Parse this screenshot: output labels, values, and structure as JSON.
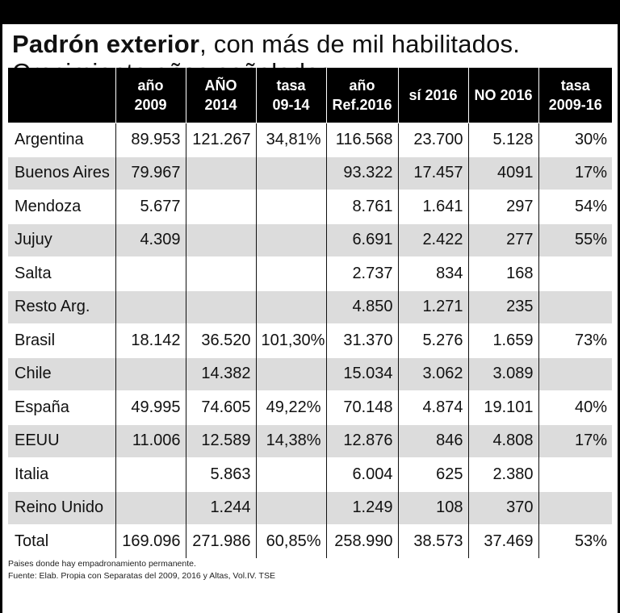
{
  "title": {
    "bold": "Padrón exterior",
    "rest": ", con más de mil habilitados. Crecimiento años señalados"
  },
  "headers": [
    [
      "",
      ""
    ],
    [
      "año",
      "2009"
    ],
    [
      "AÑO",
      "2014"
    ],
    [
      "tasa",
      "09-14"
    ],
    [
      "año",
      "Ref.2016"
    ],
    [
      "sí 2016",
      ""
    ],
    [
      "NO 2016",
      ""
    ],
    [
      "tasa",
      "2009-16"
    ]
  ],
  "rows": [
    [
      "Argentina",
      "89.953",
      "121.267",
      "34,81%",
      "116.568",
      "23.700",
      "5.128",
      "30%"
    ],
    [
      "Buenos Aires",
      "79.967",
      "",
      "",
      "93.322",
      "17.457",
      "4091",
      "17%"
    ],
    [
      "Mendoza",
      "5.677",
      "",
      "",
      "8.761",
      "1.641",
      "297",
      "54%"
    ],
    [
      "Jujuy",
      "4.309",
      "",
      "",
      "6.691",
      "2.422",
      "277",
      "55%"
    ],
    [
      "Salta",
      "",
      "",
      "",
      "2.737",
      "834",
      "168",
      ""
    ],
    [
      "Resto Arg.",
      "",
      "",
      "",
      "4.850",
      "1.271",
      "235",
      ""
    ],
    [
      "Brasil",
      "18.142",
      "36.520",
      "101,30%",
      "31.370",
      "5.276",
      "1.659",
      "73%"
    ],
    [
      "Chile",
      "",
      "14.382",
      "",
      "15.034",
      "3.062",
      "3.089",
      ""
    ],
    [
      "España",
      "49.995",
      "74.605",
      "49,22%",
      "70.148",
      "4.874",
      "19.101",
      "40%"
    ],
    [
      "EEUU",
      "11.006",
      "12.589",
      "14,38%",
      "12.876",
      "846",
      "4.808",
      "17%"
    ],
    [
      "Italia",
      "",
      "5.863",
      "",
      "6.004",
      "625",
      "2.380",
      ""
    ],
    [
      "Reino Unido",
      "",
      "1.244",
      "",
      "1.249",
      "108",
      "370",
      ""
    ],
    [
      "Total",
      "169.096",
      "271.986",
      "60,85%",
      "258.990",
      "38.573",
      "37.469",
      "53%"
    ]
  ],
  "notes": {
    "line1": "Paises donde hay empadronamiento permanente.",
    "line2": "Fuente: Elab. Propia con Separatas del 2009, 2016 y Altas, Vol.IV. TSE"
  },
  "colors": {
    "header_bg": "#000000",
    "stripe": "#dcdcdc"
  }
}
